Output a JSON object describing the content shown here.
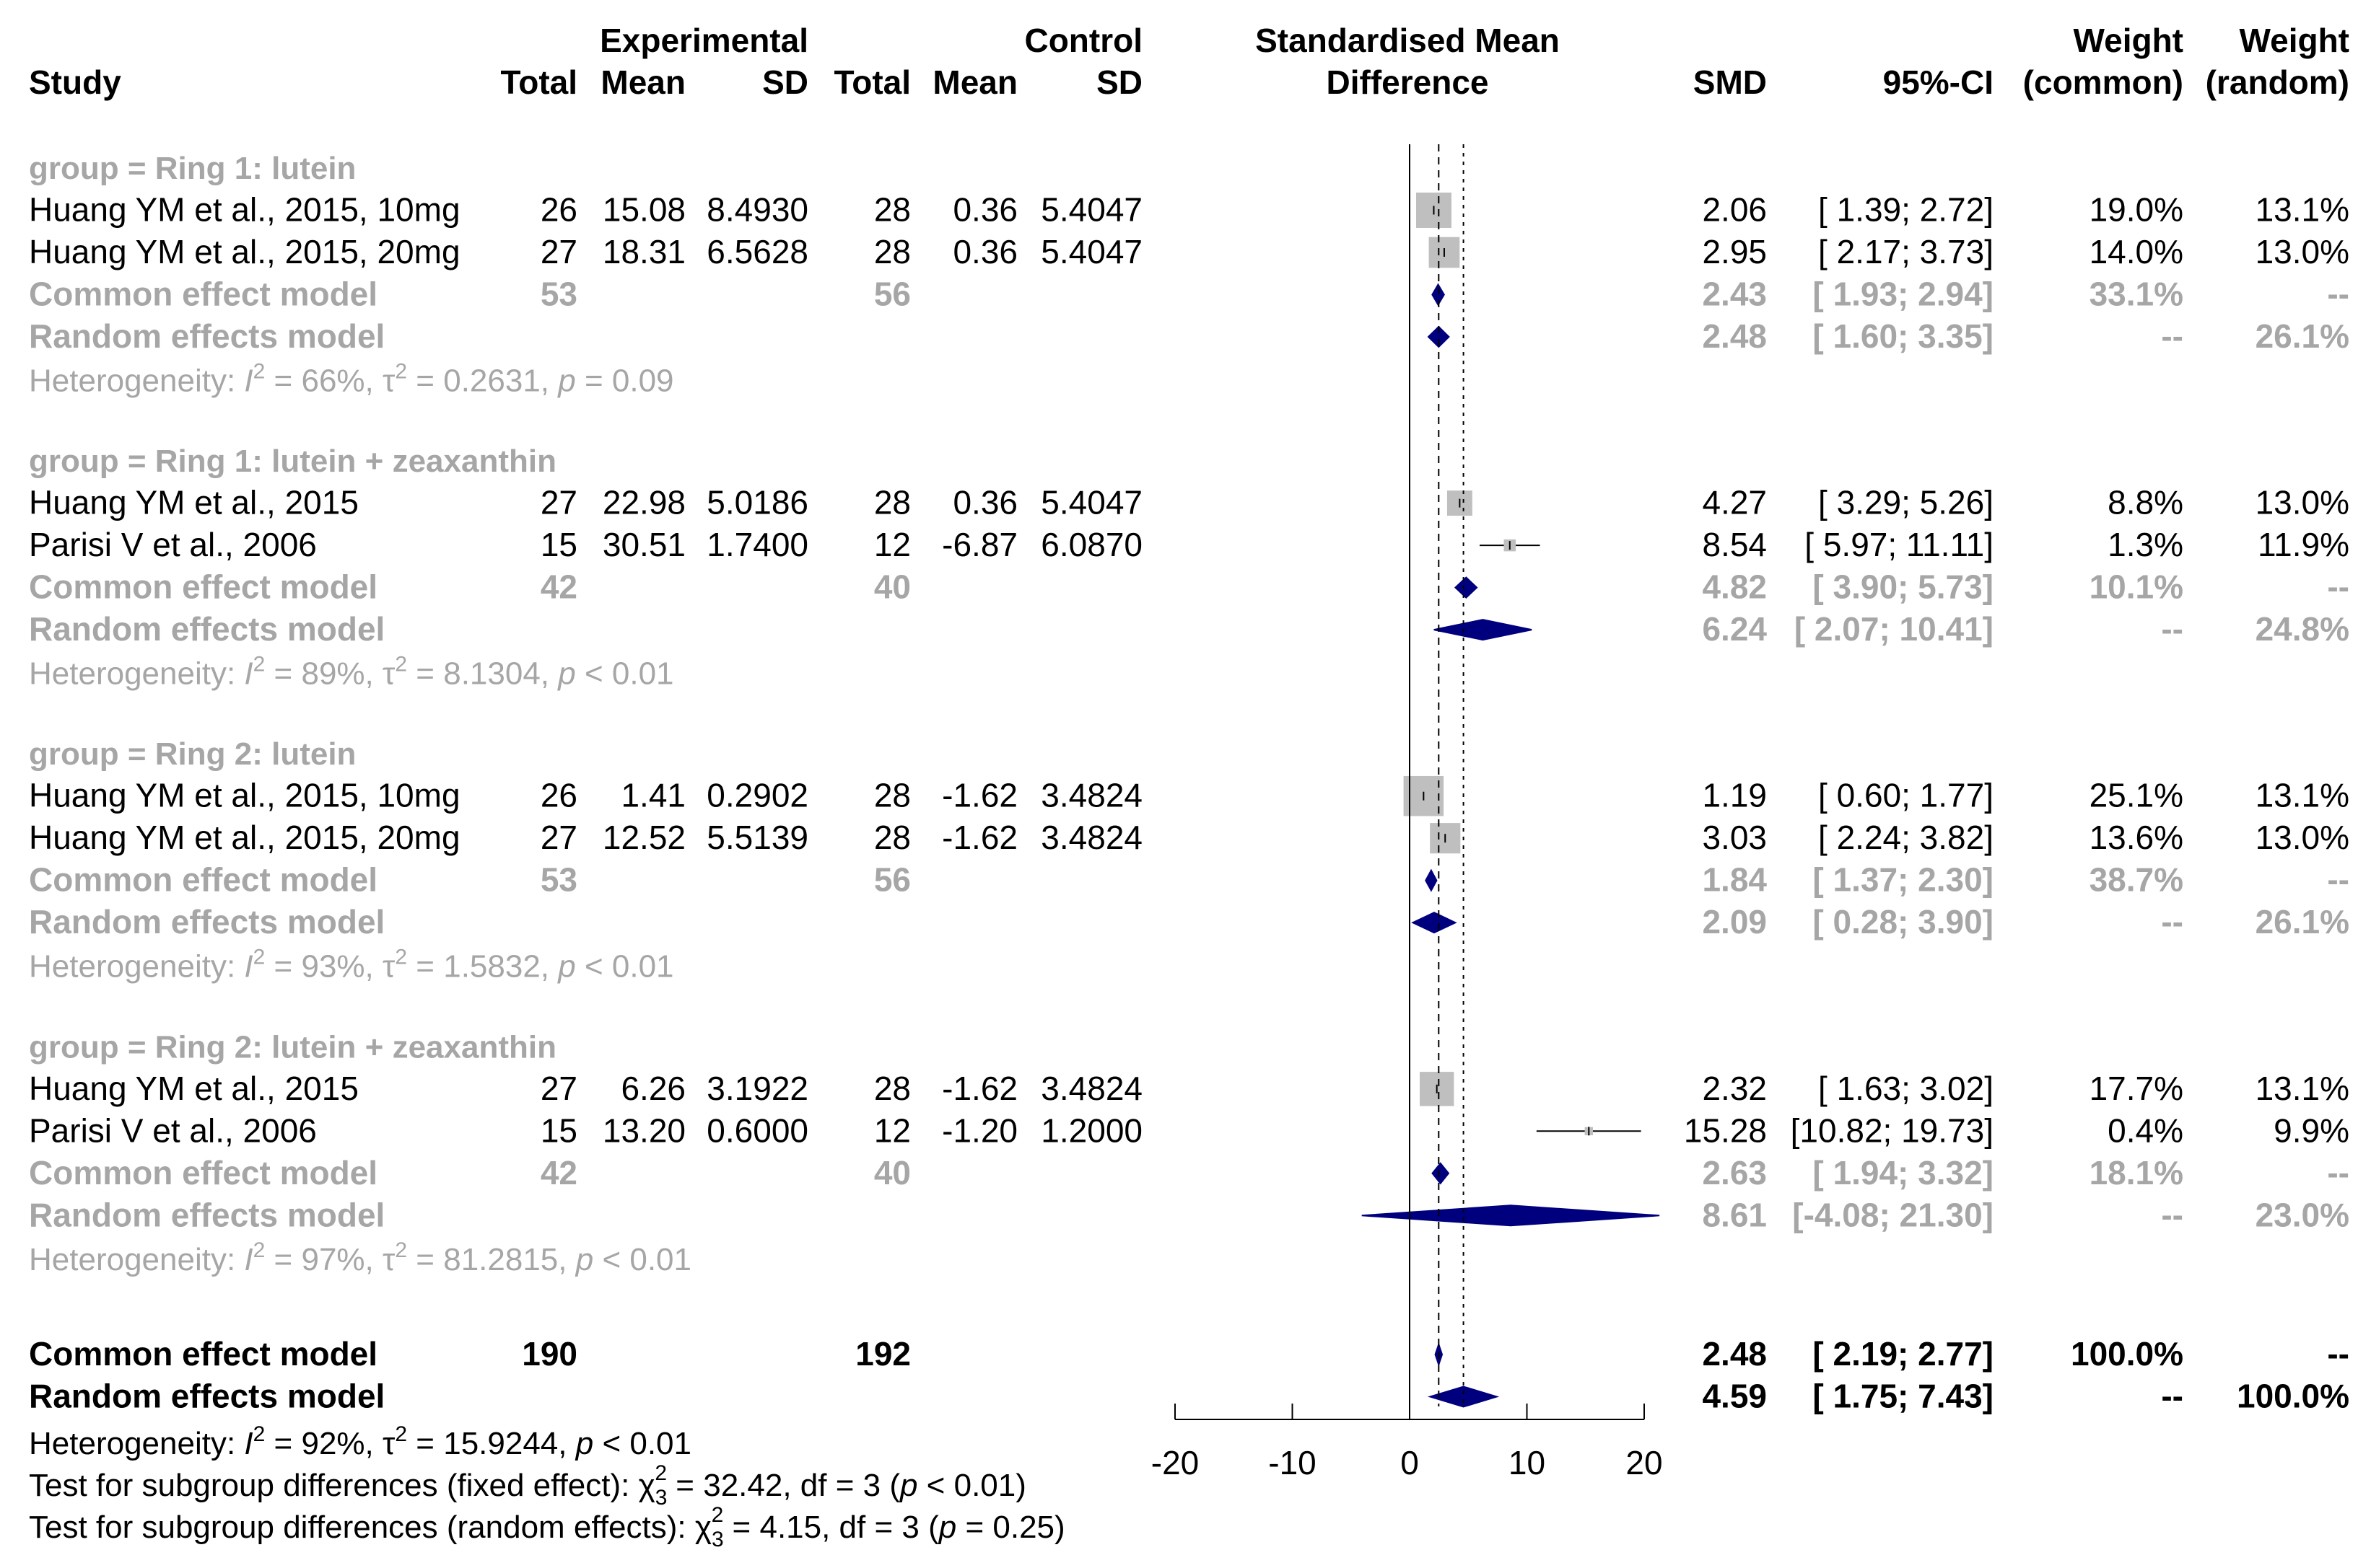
{
  "colors": {
    "text": "#000000",
    "group_text": "#a6a6a6",
    "box": "#bfbfbf",
    "diamond": "#00007f"
  },
  "chart_data": {
    "type": "forest",
    "headers": {
      "study": "Study",
      "experimental": "Experimental",
      "control": "Control",
      "total": "Total",
      "mean": "Mean",
      "sd": "SD",
      "plot_line1": "Standardised Mean",
      "plot_line2": "Difference",
      "smd": "SMD",
      "ci": "95%-CI",
      "weight": "Weight",
      "common_paren": "(common)",
      "random_paren": "(random)"
    },
    "xlim": [
      -20,
      20
    ],
    "ticks": [
      -20,
      -10,
      0,
      10,
      20
    ],
    "tick_labels": [
      "-20",
      "-10",
      "0",
      "10",
      "20"
    ],
    "common_pooled_smd": 2.48,
    "random_pooled_smd": 4.59,
    "groups": [
      {
        "label": "group = Ring 1: lutein",
        "studies": [
          {
            "name": "Huang YM et al., 2015, 10mg",
            "e_total": "26",
            "e_mean": "15.08",
            "e_sd": "8.4930",
            "c_total": "28",
            "c_mean": "0.36",
            "c_sd": "5.4047",
            "smd_text": "2.06",
            "ci_text": "[ 1.39;  2.72]",
            "w_common": "19.0%",
            "w_random": "13.1%",
            "smd": 2.06,
            "lo": 1.39,
            "hi": 2.72,
            "weight": 19.0
          },
          {
            "name": "Huang YM et al., 2015, 20mg",
            "e_total": "27",
            "e_mean": "18.31",
            "e_sd": "6.5628",
            "c_total": "28",
            "c_mean": "0.36",
            "c_sd": "5.4047",
            "smd_text": "2.95",
            "ci_text": "[ 2.17;  3.73]",
            "w_common": "14.0%",
            "w_random": "13.0%",
            "smd": 2.95,
            "lo": 2.17,
            "hi": 3.73,
            "weight": 14.0
          }
        ],
        "common": {
          "label": "Common effect model",
          "e_total": "53",
          "c_total": "56",
          "smd_text": "2.43",
          "ci_text": "[ 1.93;  2.94]",
          "w_common": "33.1%",
          "w_random": "--",
          "smd": 2.43,
          "lo": 1.93,
          "hi": 2.94
        },
        "random": {
          "label": "Random effects model",
          "smd_text": "2.48",
          "ci_text": "[ 1.60;  3.35]",
          "w_common": "--",
          "w_random": "26.1%",
          "smd": 2.48,
          "lo": 1.6,
          "hi": 3.35
        },
        "het": {
          "prefix": "Heterogeneity: ",
          "i2": "I",
          "i2_val": " = 66%, ",
          "tau": "τ",
          "tau_val": " = 0.2631, ",
          "p": "p",
          "p_val": " = 0.09"
        }
      },
      {
        "label": "group = Ring 1: lutein + zeaxanthin",
        "studies": [
          {
            "name": "Huang YM et al., 2015",
            "e_total": "27",
            "e_mean": "22.98",
            "e_sd": "5.0186",
            "c_total": "28",
            "c_mean": "0.36",
            "c_sd": "5.4047",
            "smd_text": "4.27",
            "ci_text": "[ 3.29;  5.26]",
            "w_common": "8.8%",
            "w_random": "13.0%",
            "smd": 4.27,
            "lo": 3.29,
            "hi": 5.26,
            "weight": 8.8
          },
          {
            "name": "Parisi V et al., 2006",
            "e_total": "15",
            "e_mean": "30.51",
            "e_sd": "1.7400",
            "c_total": "12",
            "c_mean": "-6.87",
            "c_sd": "6.0870",
            "smd_text": "8.54",
            "ci_text": "[ 5.97; 11.11]",
            "w_common": "1.3%",
            "w_random": "11.9%",
            "smd": 8.54,
            "lo": 5.97,
            "hi": 11.11,
            "weight": 1.3
          }
        ],
        "common": {
          "label": "Common effect model",
          "e_total": "42",
          "c_total": "40",
          "smd_text": "4.82",
          "ci_text": "[ 3.90;  5.73]",
          "w_common": "10.1%",
          "w_random": "--",
          "smd": 4.82,
          "lo": 3.9,
          "hi": 5.73
        },
        "random": {
          "label": "Random effects model",
          "smd_text": "6.24",
          "ci_text": "[ 2.07; 10.41]",
          "w_common": "--",
          "w_random": "24.8%",
          "smd": 6.24,
          "lo": 2.07,
          "hi": 10.41
        },
        "het": {
          "prefix": "Heterogeneity: ",
          "i2": "I",
          "i2_val": " = 89%, ",
          "tau": "τ",
          "tau_val": " = 8.1304, ",
          "p": "p",
          "p_val": " < 0.01"
        }
      },
      {
        "label": "group = Ring 2: lutein",
        "studies": [
          {
            "name": "Huang YM et al., 2015, 10mg",
            "e_total": "26",
            "e_mean": "1.41",
            "e_sd": "0.2902",
            "c_total": "28",
            "c_mean": "-1.62",
            "c_sd": "3.4824",
            "smd_text": "1.19",
            "ci_text": "[ 0.60;  1.77]",
            "w_common": "25.1%",
            "w_random": "13.1%",
            "smd": 1.19,
            "lo": 0.6,
            "hi": 1.77,
            "weight": 25.1
          },
          {
            "name": "Huang YM et al., 2015, 20mg",
            "e_total": "27",
            "e_mean": "12.52",
            "e_sd": "5.5139",
            "c_total": "28",
            "c_mean": "-1.62",
            "c_sd": "3.4824",
            "smd_text": "3.03",
            "ci_text": "[ 2.24;  3.82]",
            "w_common": "13.6%",
            "w_random": "13.0%",
            "smd": 3.03,
            "lo": 2.24,
            "hi": 3.82,
            "weight": 13.6
          }
        ],
        "common": {
          "label": "Common effect model",
          "e_total": "53",
          "c_total": "56",
          "smd_text": "1.84",
          "ci_text": "[ 1.37;  2.30]",
          "w_common": "38.7%",
          "w_random": "--",
          "smd": 1.84,
          "lo": 1.37,
          "hi": 2.3
        },
        "random": {
          "label": "Random effects model",
          "smd_text": "2.09",
          "ci_text": "[ 0.28;  3.90]",
          "w_common": "--",
          "w_random": "26.1%",
          "smd": 2.09,
          "lo": 0.28,
          "hi": 3.9
        },
        "het": {
          "prefix": "Heterogeneity: ",
          "i2": "I",
          "i2_val": " = 93%, ",
          "tau": "τ",
          "tau_val": " = 1.5832, ",
          "p": "p",
          "p_val": " < 0.01"
        }
      },
      {
        "label": "group = Ring 2: lutein + zeaxanthin",
        "studies": [
          {
            "name": "Huang YM et al., 2015",
            "e_total": "27",
            "e_mean": "6.26",
            "e_sd": "3.1922",
            "c_total": "28",
            "c_mean": "-1.62",
            "c_sd": "3.4824",
            "smd_text": "2.32",
            "ci_text": "[ 1.63;  3.02]",
            "w_common": "17.7%",
            "w_random": "13.1%",
            "smd": 2.32,
            "lo": 1.63,
            "hi": 3.02,
            "weight": 17.7
          },
          {
            "name": "Parisi V et al., 2006",
            "e_total": "15",
            "e_mean": "13.20",
            "e_sd": "0.6000",
            "c_total": "12",
            "c_mean": "-1.20",
            "c_sd": "1.2000",
            "smd_text": "15.28",
            "ci_text": "[10.82; 19.73]",
            "w_common": "0.4%",
            "w_random": "9.9%",
            "smd": 15.28,
            "lo": 10.82,
            "hi": 19.73,
            "weight": 0.4
          }
        ],
        "common": {
          "label": "Common effect model",
          "e_total": "42",
          "c_total": "40",
          "smd_text": "2.63",
          "ci_text": "[ 1.94;  3.32]",
          "w_common": "18.1%",
          "w_random": "--",
          "smd": 2.63,
          "lo": 1.94,
          "hi": 3.32
        },
        "random": {
          "label": "Random effects model",
          "smd_text": "8.61",
          "ci_text": "[-4.08; 21.30]",
          "w_common": "--",
          "w_random": "23.0%",
          "smd": 8.61,
          "lo": -4.08,
          "hi": 21.3
        },
        "het": {
          "prefix": "Heterogeneity: ",
          "i2": "I",
          "i2_val": " = 97%, ",
          "tau": "τ",
          "tau_val": " = 81.2815, ",
          "p": "p",
          "p_val": " < 0.01"
        }
      }
    ],
    "overall": {
      "common": {
        "label": "Common effect model",
        "e_total": "190",
        "c_total": "192",
        "smd_text": "2.48",
        "ci_text": "[ 2.19;  2.77]",
        "w_common": "100.0%",
        "w_random": "--",
        "smd": 2.48,
        "lo": 2.19,
        "hi": 2.77
      },
      "random": {
        "label": "Random effects model",
        "smd_text": "4.59",
        "ci_text": "[ 1.75;  7.43]",
        "w_common": "--",
        "w_random": "100.0%",
        "smd": 4.59,
        "lo": 1.75,
        "hi": 7.43
      },
      "het": {
        "prefix": "Heterogeneity: ",
        "i2": "I",
        "i2_val": " = 92%, ",
        "tau": "τ",
        "tau_val": " = 15.9244, ",
        "p": "p",
        "p_val": " < 0.01"
      },
      "test_fixed": {
        "prefix": "Test for subgroup differences (fixed effect): ",
        "chi": "χ",
        "chi_sub": "3",
        "chi_sup": "2",
        "stat": " = 32.42, df = 3 (",
        "p": "p",
        "p_val": " < 0.01)"
      },
      "test_random": {
        "prefix": "Test for subgroup differences (random effects): ",
        "chi": "χ",
        "chi_sub": "3",
        "chi_sup": "2",
        "stat": " = 4.15, df = 3 (",
        "p": "p",
        "p_val": " = 0.25)"
      }
    }
  }
}
